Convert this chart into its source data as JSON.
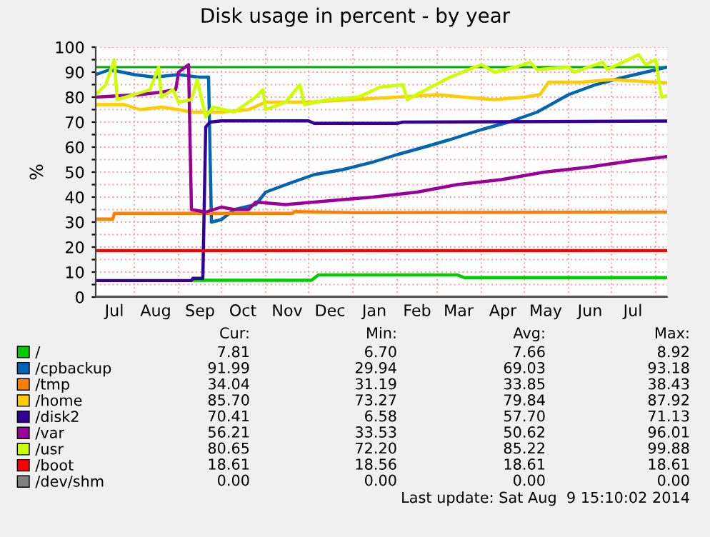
{
  "chart_data": {
    "type": "line",
    "title": "Disk usage in percent - by year",
    "ylabel": "%",
    "xlim": [
      "2013-07-05",
      "2014-08-09"
    ],
    "ylim": [
      0,
      100
    ],
    "yticks": [
      0,
      {
        "value": 5,
        "label": null
      },
      10,
      {
        "value": 15,
        "label": null
      },
      20,
      {
        "value": 25,
        "label": null
      },
      30,
      {
        "value": 35,
        "label": null
      },
      40,
      {
        "value": 45,
        "label": null
      },
      50,
      {
        "value": 55,
        "label": null
      },
      60,
      {
        "value": 65,
        "label": null
      },
      70,
      {
        "value": 75,
        "label": null
      },
      80,
      {
        "value": 85,
        "label": null
      },
      90,
      {
        "value": 95,
        "label": null
      },
      100
    ],
    "xticks": [
      {
        "value": "2013-07-18",
        "label": "Jul"
      },
      {
        "value": "2013-08-01",
        "label": null
      },
      {
        "value": "2013-08-16",
        "label": "Aug"
      },
      {
        "value": "2013-09-01",
        "label": null
      },
      {
        "value": "2013-09-16",
        "label": "Sep"
      },
      {
        "value": "2013-10-01",
        "label": null
      },
      {
        "value": "2013-10-16",
        "label": "Oct"
      },
      {
        "value": "2013-11-01",
        "label": null
      },
      {
        "value": "2013-11-16",
        "label": "Nov"
      },
      {
        "value": "2013-12-01",
        "label": null
      },
      {
        "value": "2013-12-16",
        "label": "Dec"
      },
      {
        "value": "2014-01-01",
        "label": null
      },
      {
        "value": "2014-01-16",
        "label": "Jan"
      },
      {
        "value": "2014-02-01",
        "label": null
      },
      {
        "value": "2014-02-15",
        "label": "Feb"
      },
      {
        "value": "2014-03-01",
        "label": null
      },
      {
        "value": "2014-03-16",
        "label": "Mar"
      },
      {
        "value": "2014-04-01",
        "label": null
      },
      {
        "value": "2014-04-16",
        "label": "Apr"
      },
      {
        "value": "2014-05-01",
        "label": null
      },
      {
        "value": "2014-05-16",
        "label": "May"
      },
      {
        "value": "2014-06-01",
        "label": null
      },
      {
        "value": "2014-06-16",
        "label": "Jun"
      },
      {
        "value": "2014-07-01",
        "label": null
      },
      {
        "value": "2014-07-16",
        "label": "Jul"
      },
      {
        "value": "2014-08-01",
        "label": null
      }
    ],
    "grid": true,
    "legend": "bottom",
    "marker": "none",
    "line_style": "solid",
    "ref_lines": [
      {
        "axis": "y",
        "value": 92,
        "color": "#00aa00"
      }
    ],
    "series": [
      {
        "name": "/",
        "color": "#00cc00",
        "x": [
          "2013-09-11",
          "2013-12-03",
          "2013-12-08",
          "2014-03-15",
          "2014-03-20",
          "2014-08-09"
        ],
        "values": [
          6.7,
          6.7,
          8.9,
          8.9,
          7.8,
          7.81
        ]
      },
      {
        "name": "/cpbackup",
        "color": "#0066b3",
        "x": [
          "2013-07-05",
          "2013-07-15",
          "2013-08-01",
          "2013-08-15",
          "2013-09-01",
          "2013-09-15",
          "2013-09-22",
          "2013-09-24",
          "2013-10-01",
          "2013-10-10",
          "2013-10-25",
          "2013-11-01",
          "2013-11-20",
          "2013-12-05",
          "2013-12-25",
          "2014-01-15",
          "2014-02-01",
          "2014-02-20",
          "2014-03-10",
          "2014-04-01",
          "2014-04-20",
          "2014-05-10",
          "2014-06-01",
          "2014-06-20",
          "2014-07-10",
          "2014-07-25",
          "2014-08-09"
        ],
        "values": [
          89,
          91,
          89,
          88,
          89,
          88,
          88,
          30,
          31,
          35,
          37,
          42,
          46,
          49,
          51,
          54,
          57,
          60,
          63,
          67,
          70,
          74,
          81,
          85,
          88,
          90,
          91.99
        ]
      },
      {
        "name": "/tmp",
        "color": "#ff8000",
        "x": [
          "2013-07-05",
          "2013-07-17",
          "2013-07-18",
          "2013-11-20",
          "2013-11-21",
          "2014-01-01",
          "2014-08-09"
        ],
        "values": [
          31.2,
          31.2,
          33.5,
          33.5,
          34.2,
          33.8,
          34.04
        ]
      },
      {
        "name": "/home",
        "color": "#ffcc00",
        "x": [
          "2013-07-05",
          "2013-07-25",
          "2013-08-05",
          "2013-08-20",
          "2013-09-01",
          "2013-09-10",
          "2013-10-01",
          "2013-10-20",
          "2013-11-01",
          "2013-12-01",
          "2014-01-01",
          "2014-02-01",
          "2014-03-01",
          "2014-03-20",
          "2014-04-10",
          "2014-05-01",
          "2014-05-12",
          "2014-05-18",
          "2014-06-10",
          "2014-07-01",
          "2014-08-09"
        ],
        "values": [
          77,
          77,
          75,
          76,
          75,
          74,
          74,
          75,
          78,
          78,
          79,
          80,
          81,
          80,
          79,
          80,
          81,
          86,
          86,
          87,
          85.7
        ]
      },
      {
        "name": "/disk2",
        "color": "#330099",
        "x": [
          "2013-07-05",
          "2013-09-10",
          "2013-09-11",
          "2013-09-18",
          "2013-09-20",
          "2013-09-23",
          "2013-10-01",
          "2013-12-01",
          "2013-12-05",
          "2014-02-01",
          "2014-02-05",
          "2014-08-09"
        ],
        "values": [
          6.6,
          6.6,
          7.5,
          7.5,
          68,
          70,
          70.5,
          70.5,
          69.5,
          69.5,
          70,
          70.41
        ]
      },
      {
        "name": "/var",
        "color": "#990099",
        "x": [
          "2013-07-05",
          "2013-07-20",
          "2013-08-05",
          "2013-08-20",
          "2013-08-30",
          "2013-09-01",
          "2013-09-08",
          "2013-09-10",
          "2013-09-20",
          "2013-10-01",
          "2013-10-10",
          "2013-10-20",
          "2013-10-25",
          "2013-11-15",
          "2013-12-15",
          "2014-01-15",
          "2014-02-15",
          "2014-03-15",
          "2014-04-15",
          "2014-05-15",
          "2014-06-15",
          "2014-07-15",
          "2014-08-09"
        ],
        "values": [
          80,
          80.5,
          81,
          82,
          83,
          90,
          93,
          35,
          34,
          36,
          35,
          35,
          38,
          37,
          38.5,
          40,
          42,
          45,
          47,
          50,
          52,
          54.5,
          56.21
        ]
      },
      {
        "name": "/usr",
        "color": "#ccff00",
        "x": [
          "2013-07-05",
          "2013-07-12",
          "2013-07-18",
          "2013-07-20",
          "2013-08-01",
          "2013-08-12",
          "2013-08-18",
          "2013-08-20",
          "2013-08-28",
          "2013-09-01",
          "2013-09-10",
          "2013-09-14",
          "2013-09-20",
          "2013-09-25",
          "2013-10-10",
          "2013-10-25",
          "2013-10-30",
          "2013-11-01",
          "2013-11-15",
          "2013-11-25",
          "2013-11-28",
          "2013-12-15",
          "2014-01-05",
          "2014-01-20",
          "2014-02-05",
          "2014-02-08",
          "2014-03-10",
          "2014-04-01",
          "2014-04-10",
          "2014-04-25",
          "2014-05-05",
          "2014-05-10",
          "2014-06-01",
          "2014-06-05",
          "2014-06-25",
          "2014-06-28",
          "2014-07-20",
          "2014-07-25",
          "2014-08-01",
          "2014-08-05",
          "2014-08-09"
        ],
        "values": [
          81,
          85,
          95,
          79,
          81,
          83,
          92,
          80,
          83,
          78,
          79,
          87,
          72,
          76,
          74,
          80,
          83,
          75,
          78,
          85,
          77,
          79,
          80,
          84,
          85,
          79,
          88,
          93,
          90,
          92,
          94,
          91,
          92,
          90,
          94,
          91,
          97,
          93,
          95,
          80,
          80.65
        ]
      },
      {
        "name": "/boot",
        "color": "#ff0000",
        "x": [
          "2013-07-05",
          "2014-08-09"
        ],
        "values": [
          18.61,
          18.61
        ]
      },
      {
        "name": "/dev/shm",
        "color": "#808080",
        "x": [
          "2013-07-05",
          "2014-08-09"
        ],
        "values": [
          0,
          0
        ]
      }
    ],
    "annotations": [
      "Cur:",
      "Min:",
      "Avg:",
      "Max:",
      "7.81",
      "6.70",
      "7.66",
      "8.92",
      "91.99",
      "29.94",
      "69.03",
      "93.18",
      "34.04",
      "31.19",
      "33.85",
      "38.43",
      "85.70",
      "73.27",
      "79.84",
      "87.92",
      "70.41",
      "6.58",
      "57.70",
      "71.13",
      "56.21",
      "33.53",
      "50.62",
      "96.01",
      "80.65",
      "72.20",
      "85.22",
      "99.88",
      "18.61",
      "18.56",
      "18.61",
      "18.61",
      "0.00",
      "0.00",
      "0.00",
      "0.00",
      "Last update: Sat Aug  9 15:10:02 2014"
    ]
  }
}
